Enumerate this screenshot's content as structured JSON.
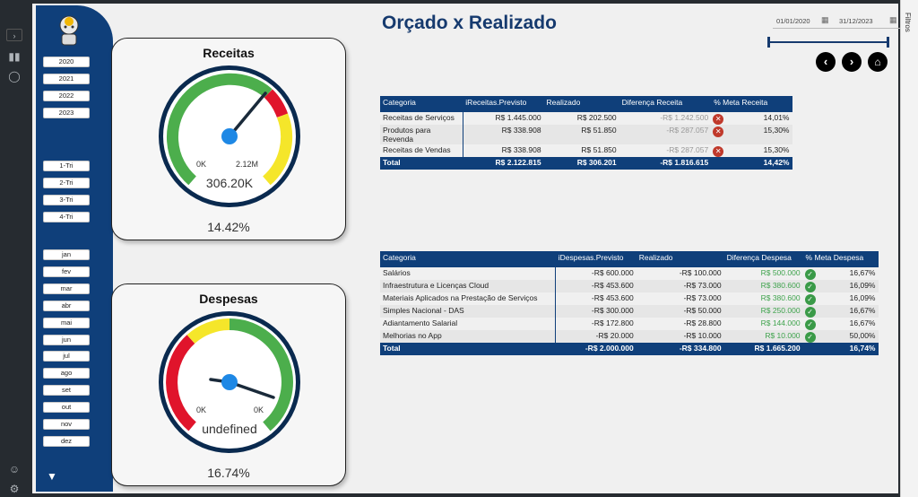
{
  "page": {
    "title": "Orçado x Realizado"
  },
  "filters_pane": {
    "label": "Filtros"
  },
  "date_range": {
    "start": "01/01/2020",
    "end": "31/12/2023"
  },
  "years": [
    "2020",
    "2021",
    "2022",
    "2023"
  ],
  "quarters": [
    "1-Tri",
    "2-Tri",
    "3-Tri",
    "4-Tri"
  ],
  "months": [
    "jan",
    "fev",
    "mar",
    "abr",
    "mai",
    "jun",
    "jul",
    "ago",
    "set",
    "out",
    "nov",
    "dez"
  ],
  "receitas_gauge": {
    "title": "Receitas",
    "min_label": "0K",
    "max_label": "2.12M",
    "value": "306.20K",
    "percent": "14.42%"
  },
  "despesas_gauge": {
    "title": "Despesas",
    "min_label": "0K",
    "max_label": "0K",
    "value": "undefined",
    "percent": "16.74%"
  },
  "receitas_table": {
    "headers": [
      "Categoria",
      "iReceitas.Previsto",
      "Realizado",
      "Diferença Receita",
      "% Meta Receita"
    ],
    "rows": [
      [
        "Receitas de Serviços",
        "R$ 1.445.000",
        "R$ 202.500",
        "-R$ 1.242.500",
        "14,01%"
      ],
      [
        "Produtos para Revenda",
        "R$ 338.908",
        "R$ 51.850",
        "-R$ 287.057",
        "15,30%"
      ],
      [
        "Receitas de Vendas",
        "R$ 338.908",
        "R$ 51.850",
        "-R$ 287.057",
        "15,30%"
      ]
    ],
    "total": [
      "Total",
      "R$ 2.122.815",
      "R$ 306.201",
      "-R$ 1.816.615",
      "14,42%"
    ]
  },
  "despesas_table": {
    "headers": [
      "Categoria",
      "iDespesas.Previsto",
      "Realizado",
      "Diferença Despesa",
      "% Meta Despesa"
    ],
    "rows": [
      [
        "Salários",
        "-R$ 600.000",
        "-R$ 100.000",
        "R$ 500.000",
        "16,67%"
      ],
      [
        "Infraestrutura e Licenças Cloud",
        "-R$ 453.600",
        "-R$ 73.000",
        "R$ 380.600",
        "16,09%"
      ],
      [
        "Materiais Aplicados na Prestação de Serviços",
        "-R$ 453.600",
        "-R$ 73.000",
        "R$ 380.600",
        "16,09%"
      ],
      [
        "Simples Nacional - DAS",
        "-R$ 300.000",
        "-R$ 50.000",
        "R$ 250.000",
        "16,67%"
      ],
      [
        "Adiantamento Salarial",
        "-R$ 172.800",
        "-R$ 28.800",
        "R$ 144.000",
        "16,67%"
      ],
      [
        "Melhorias no App",
        "-R$ 20.000",
        "-R$ 10.000",
        "R$ 10.000",
        "50,00%"
      ]
    ],
    "total": [
      "Total",
      "-R$ 2.000.000",
      "-R$ 334.800",
      "R$ 1.665.200",
      "16,74%"
    ]
  }
}
